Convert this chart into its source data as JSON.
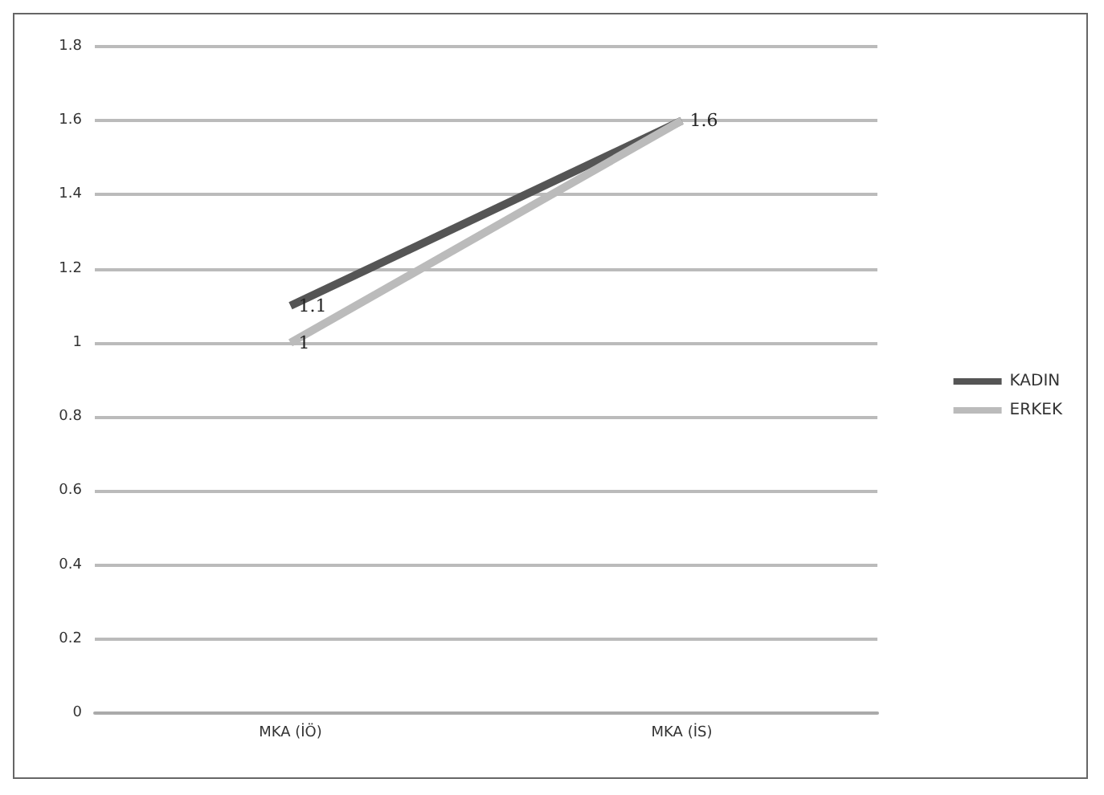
{
  "chart_data": {
    "type": "line",
    "categories": [
      "MKA (İÖ)",
      "MKA (İS)"
    ],
    "series": [
      {
        "name": "KADIN",
        "color": "#555555",
        "values": [
          1.1,
          1.6
        ],
        "value_labels": [
          "1.1",
          "1.6"
        ]
      },
      {
        "name": "ERKEK",
        "color": "#bbbbbb",
        "values": [
          1,
          1.6
        ],
        "value_labels": [
          "1",
          null
        ]
      }
    ],
    "ylim": [
      0,
      1.8
    ],
    "yticks": [
      0,
      0.2,
      0.4,
      0.6,
      0.8,
      1,
      1.2,
      1.4,
      1.6,
      1.8
    ],
    "grid": "y",
    "legend": "right",
    "marker": "none"
  }
}
